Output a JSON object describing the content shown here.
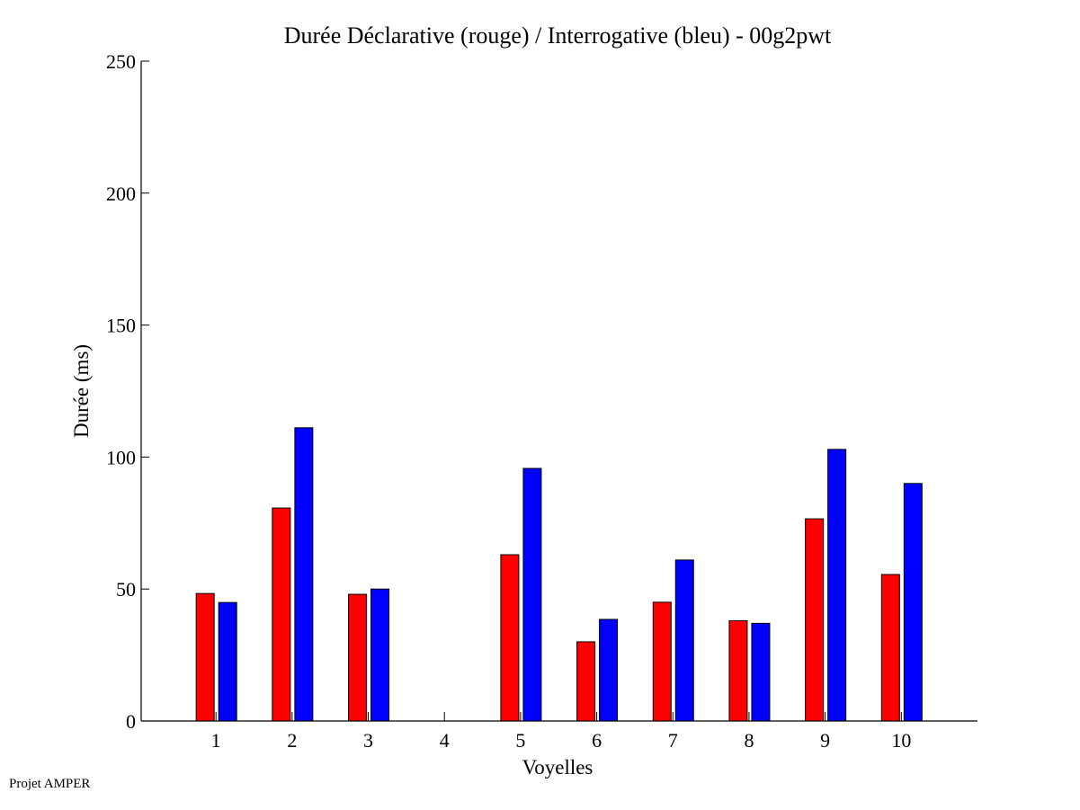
{
  "chart_data": {
    "type": "bar",
    "title": "Durée Déclarative (rouge) / Interrogative (bleu) - 00g2pwt",
    "xlabel": "Voyelles",
    "ylabel": "Durée (ms)",
    "categories": [
      "1",
      "2",
      "3",
      "4",
      "5",
      "6",
      "7",
      "8",
      "9",
      "10"
    ],
    "xlim": [
      0,
      11
    ],
    "ylim": [
      0,
      250
    ],
    "yticks": [
      0,
      50,
      100,
      150,
      200,
      250
    ],
    "grid": false,
    "series": [
      {
        "name": "Déclarative",
        "color": "#ff0000",
        "values": [
          48.3,
          80.7,
          48.0,
          null,
          63.0,
          30.0,
          45.0,
          38.0,
          76.6,
          55.5
        ]
      },
      {
        "name": "Interrogative",
        "color": "#0000ff",
        "values": [
          44.9,
          111.1,
          50.0,
          null,
          95.7,
          38.5,
          61.0,
          37.0,
          102.9,
          90.0
        ]
      }
    ]
  },
  "footer": "Projet AMPER"
}
